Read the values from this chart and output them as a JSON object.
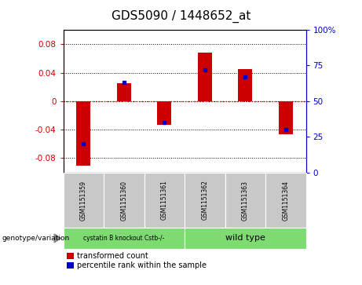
{
  "title": "GDS5090 / 1448652_at",
  "samples": [
    "GSM1151359",
    "GSM1151360",
    "GSM1151361",
    "GSM1151362",
    "GSM1151363",
    "GSM1151364"
  ],
  "red_values": [
    -0.09,
    0.025,
    -0.033,
    0.068,
    0.045,
    -0.046
  ],
  "blue_values": [
    20,
    63,
    35,
    72,
    67,
    30
  ],
  "group1_label": "cystatin B knockout Cstb-/-",
  "group2_label": "wild type",
  "group_color": "#7EDB72",
  "ylim_left": [
    -0.1,
    0.1
  ],
  "ylim_right": [
    0,
    100
  ],
  "yticks_left": [
    -0.08,
    -0.04,
    0,
    0.04,
    0.08
  ],
  "yticks_right": [
    0,
    25,
    50,
    75,
    100
  ],
  "ylabel_left_color": "#cc0000",
  "ylabel_right_color": "#0000cc",
  "bar_width": 0.35,
  "legend_red": "transformed count",
  "legend_blue": "percentile rank within the sample",
  "cell_bg": "#c8c8c8",
  "plot_bg": "#ffffff",
  "grid_color": "#000000",
  "zero_line_color": "#cc0000"
}
